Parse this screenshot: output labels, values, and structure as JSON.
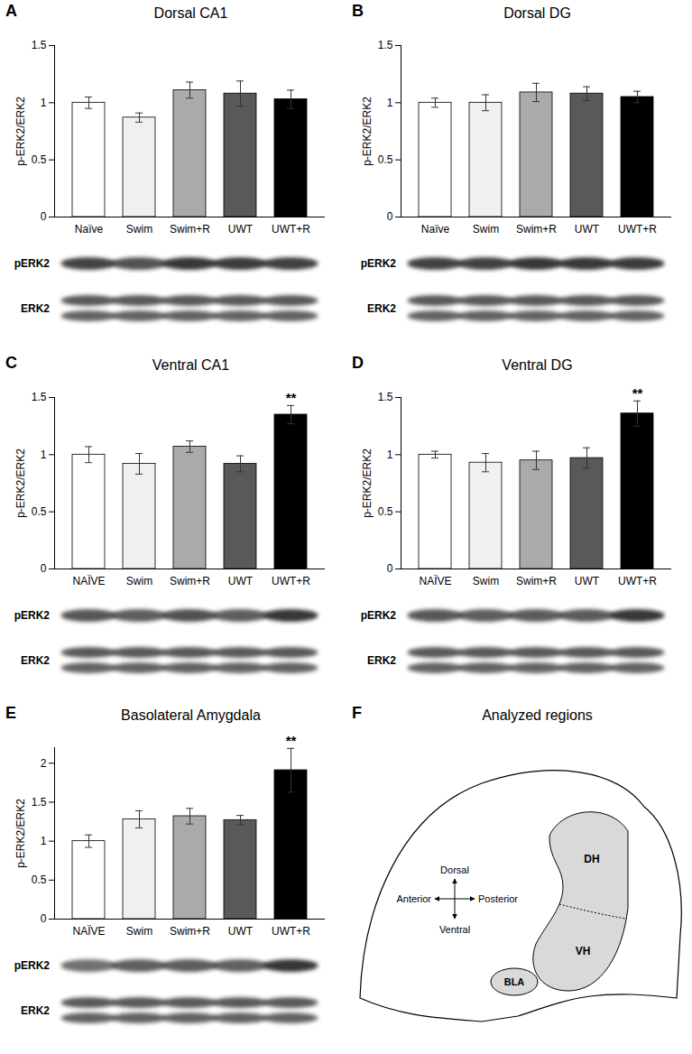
{
  "chart_data": [
    {
      "panel": "A",
      "type": "bar",
      "title": "Dorsal CA1",
      "ylabel": "p-ERK2/ERK2",
      "categories": [
        "Naïve",
        "Swim",
        "Swim+R",
        "UWT",
        "UWT+R"
      ],
      "values": [
        1.0,
        0.87,
        1.11,
        1.08,
        1.03
      ],
      "errors": [
        0.05,
        0.04,
        0.07,
        0.11,
        0.08
      ],
      "colors": [
        "#ffffff",
        "#f0f0f0",
        "#aaaaaa",
        "#595959",
        "#000000"
      ],
      "ylim": [
        0,
        1.5
      ],
      "yticks": [
        0,
        0.5,
        1,
        1.5
      ],
      "blot_labels": [
        "pERK2",
        "ERK2"
      ]
    },
    {
      "panel": "B",
      "type": "bar",
      "title": "Dorsal DG",
      "ylabel": "p-ERK2/ERK2",
      "categories": [
        "Naïve",
        "Swim",
        "Swim+R",
        "UWT",
        "UWT+R"
      ],
      "values": [
        1.0,
        1.0,
        1.09,
        1.08,
        1.05
      ],
      "errors": [
        0.04,
        0.07,
        0.08,
        0.06,
        0.05
      ],
      "colors": [
        "#ffffff",
        "#f0f0f0",
        "#aaaaaa",
        "#595959",
        "#000000"
      ],
      "ylim": [
        0,
        1.5
      ],
      "yticks": [
        0,
        0.5,
        1,
        1.5
      ],
      "blot_labels": [
        "pERK2",
        "ERK2"
      ]
    },
    {
      "panel": "C",
      "type": "bar",
      "title": "Ventral CA1",
      "ylabel": "p-ERK2/ERK2",
      "categories": [
        "NAÏVE",
        "Swim",
        "Swim+R",
        "UWT",
        "UWT+R"
      ],
      "values": [
        1.0,
        0.92,
        1.07,
        0.92,
        1.35
      ],
      "errors": [
        0.07,
        0.09,
        0.05,
        0.07,
        0.08
      ],
      "colors": [
        "#ffffff",
        "#f0f0f0",
        "#aaaaaa",
        "#595959",
        "#000000"
      ],
      "annotations": [
        {
          "category": "UWT+R",
          "text": "**"
        }
      ],
      "ylim": [
        0,
        1.5
      ],
      "yticks": [
        0,
        0.5,
        1,
        1.5
      ],
      "blot_labels": [
        "pERK2",
        "ERK2"
      ]
    },
    {
      "panel": "D",
      "type": "bar",
      "title": "Ventral DG",
      "ylabel": "p-ERK2/ERK2",
      "categories": [
        "NAÏVE",
        "Swim",
        "Swim+R",
        "UWT",
        "UWT+R"
      ],
      "values": [
        1.0,
        0.93,
        0.95,
        0.97,
        1.36
      ],
      "errors": [
        0.03,
        0.08,
        0.08,
        0.09,
        0.11
      ],
      "colors": [
        "#ffffff",
        "#f0f0f0",
        "#aaaaaa",
        "#595959",
        "#000000"
      ],
      "annotations": [
        {
          "category": "UWT+R",
          "text": "**"
        }
      ],
      "ylim": [
        0,
        1.5
      ],
      "yticks": [
        0,
        0.5,
        1,
        1.5
      ],
      "blot_labels": [
        "pERK2",
        "ERK2"
      ]
    },
    {
      "panel": "E",
      "type": "bar",
      "title": "Basolateral Amygdala",
      "ylabel": "p-ERK2/ERK2",
      "categories": [
        "NAÏVE",
        "Swim",
        "Swim+R",
        "UWT",
        "UWT+R"
      ],
      "values": [
        1.0,
        1.28,
        1.32,
        1.27,
        1.91
      ],
      "errors": [
        0.08,
        0.11,
        0.1,
        0.06,
        0.28
      ],
      "colors": [
        "#ffffff",
        "#f0f0f0",
        "#aaaaaa",
        "#595959",
        "#000000"
      ],
      "annotations": [
        {
          "category": "UWT+R",
          "text": "**"
        }
      ],
      "ylim": [
        0,
        2.2
      ],
      "yticks": [
        0,
        0.5,
        1,
        1.5,
        2
      ],
      "blot_labels": [
        "pERK2",
        "ERK2"
      ]
    }
  ],
  "diagram": {
    "panel": "F",
    "title": "Analyzed regions",
    "regions": {
      "dorsal_hippocampus": "DH",
      "ventral_hippocampus": "VH",
      "amygdala": "BLA"
    },
    "directions": {
      "up": "Dorsal",
      "down": "Ventral",
      "left": "Anterior",
      "right": "Posterior"
    }
  }
}
